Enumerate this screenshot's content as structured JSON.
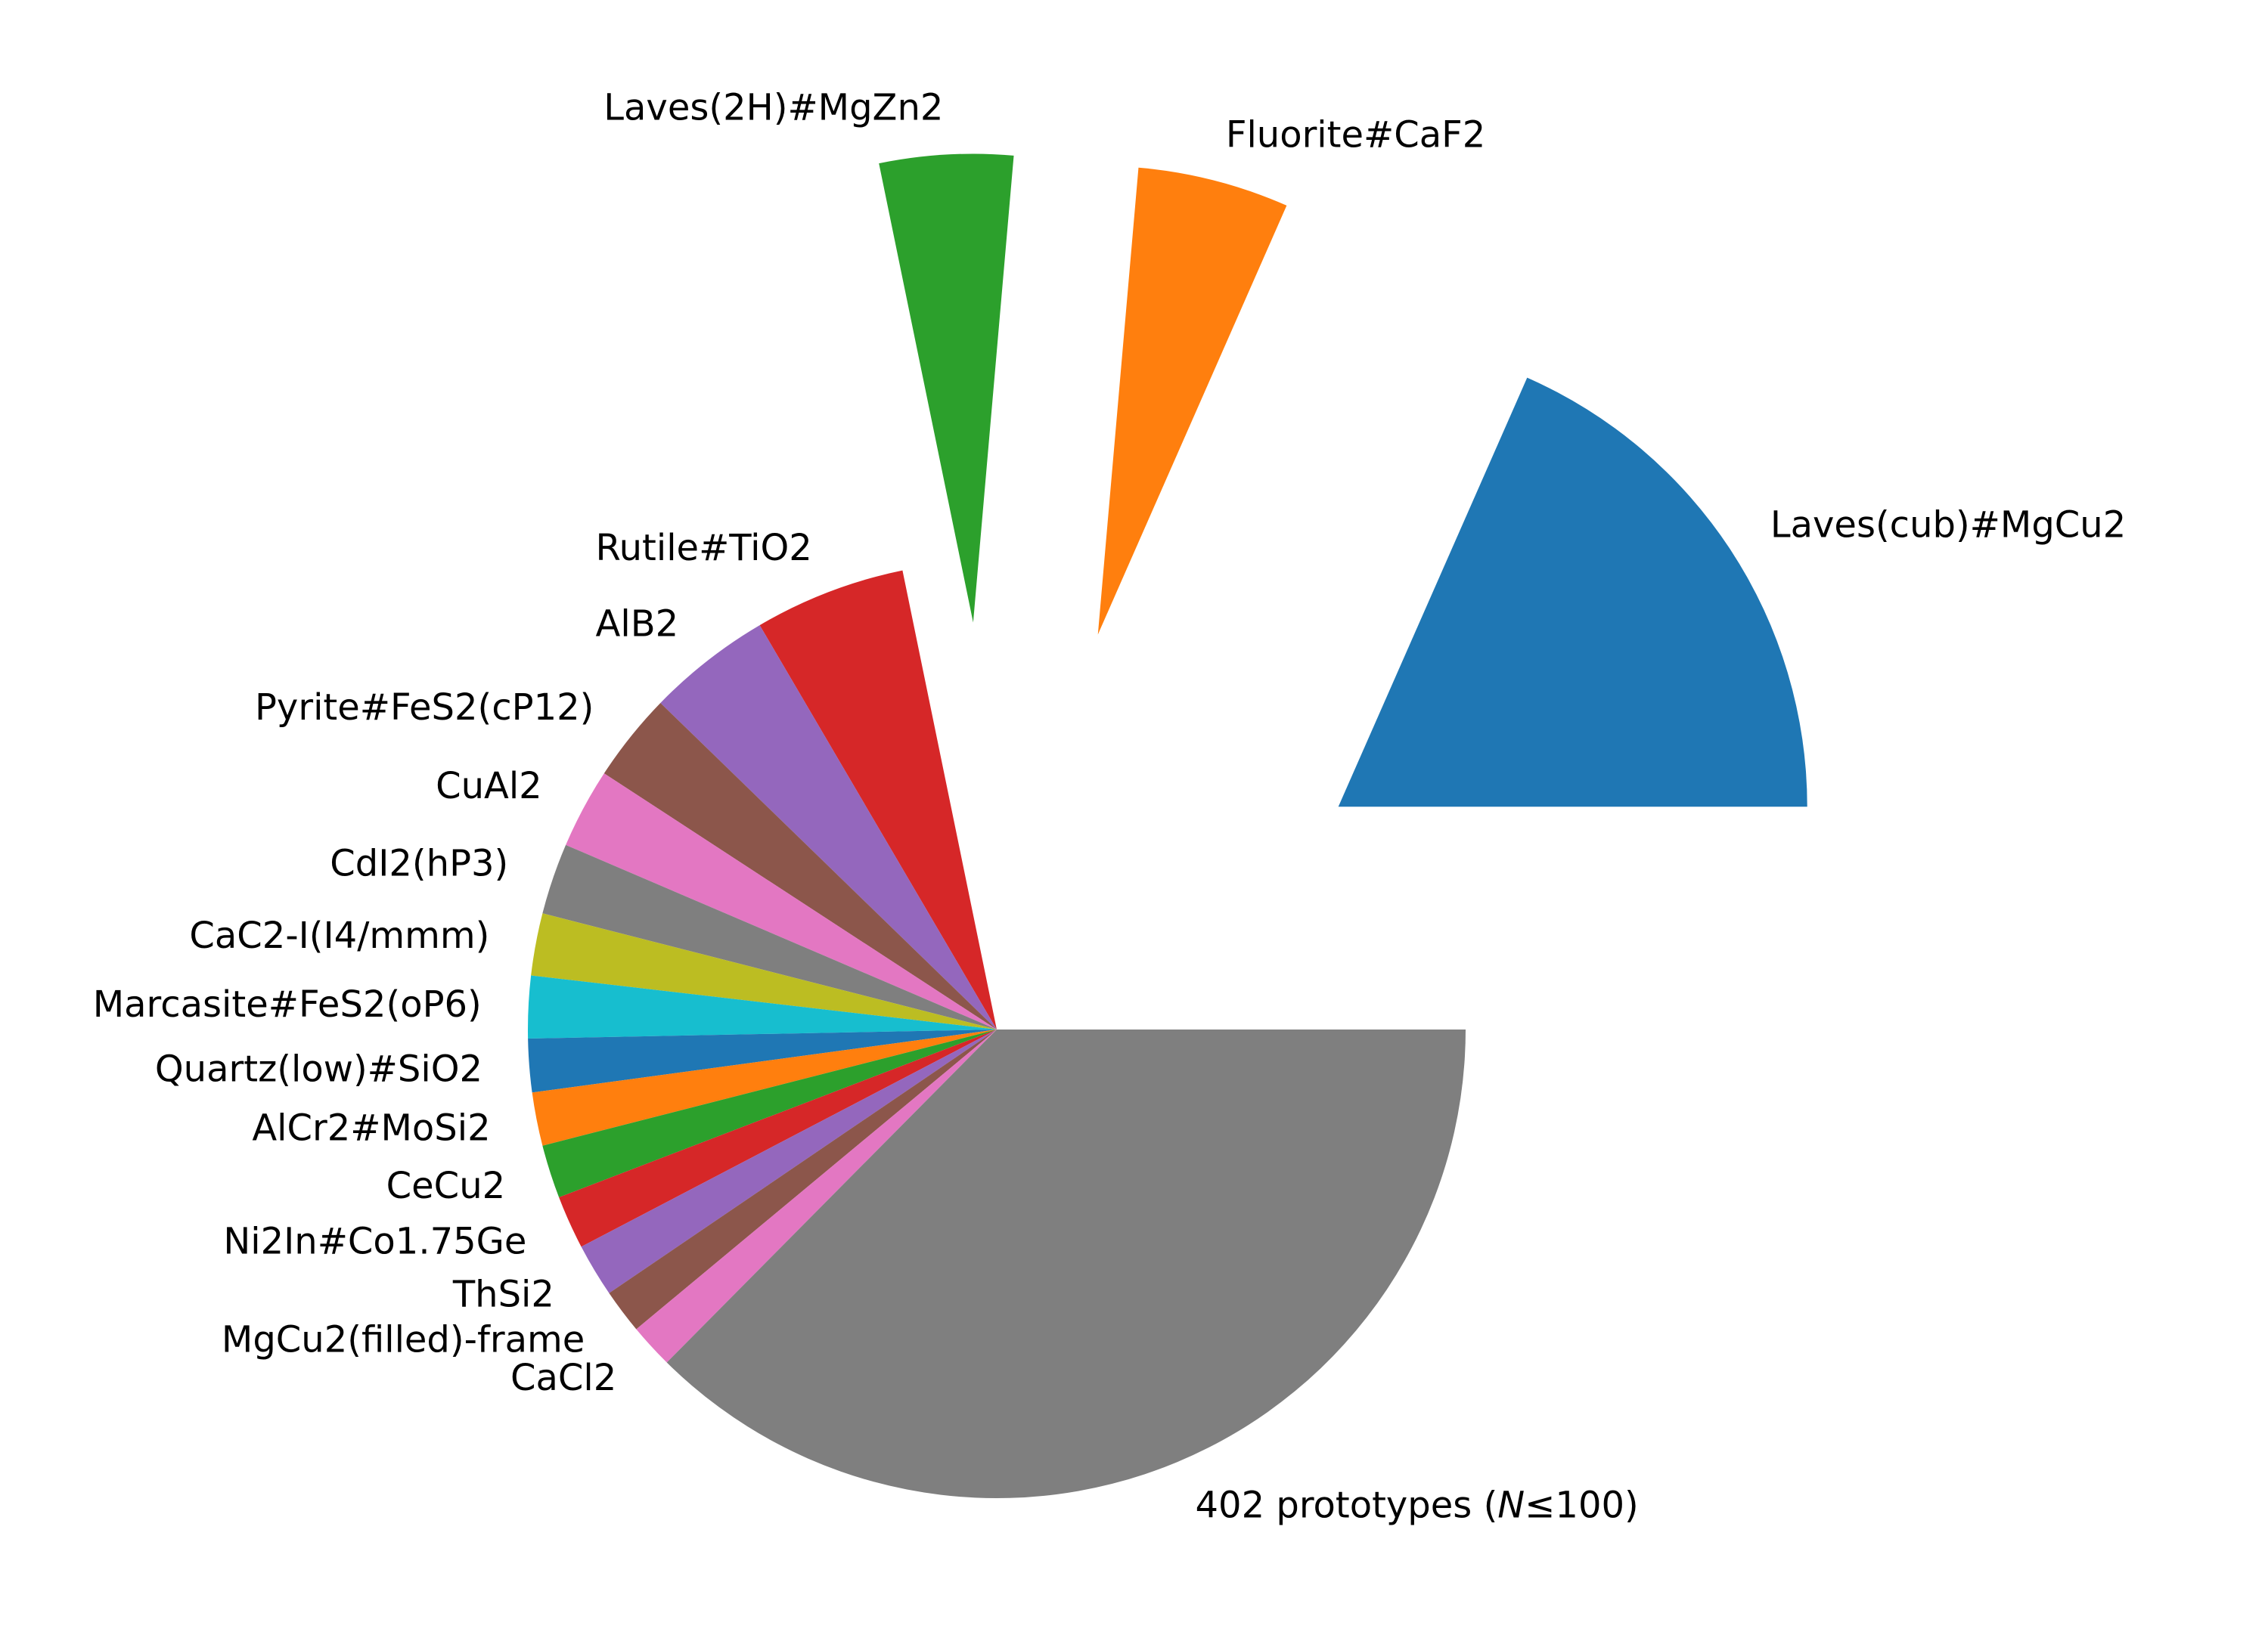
{
  "chart_data": {
    "type": "pie",
    "start_angle_deg": 0,
    "direction": "counterclockwise",
    "slices": [
      {
        "label": "Laves(cub)#MgCu2",
        "value": 60,
        "color": "#1f77b4",
        "exploded": true
      },
      {
        "label": "Fluorite#CaF2",
        "value": 17,
        "color": "#ff7f0e",
        "exploded": true
      },
      {
        "label": "Laves(2H)#MgZn2",
        "value": 15,
        "color": "#2ca02c",
        "exploded": true
      },
      {
        "label": "Rutile#TiO2",
        "value": 17,
        "color": "#d62728",
        "exploded": false
      },
      {
        "label": "AlB2",
        "value": 14,
        "color": "#9467bd",
        "exploded": false
      },
      {
        "label": "Pyrite#FeS2(cP12)",
        "value": 10,
        "color": "#8c564b",
        "exploded": false
      },
      {
        "label": "CuAl2",
        "value": 9,
        "color": "#e377c2",
        "exploded": false
      },
      {
        "label": "CdI2(hP3)",
        "value": 8,
        "color": "#7f7f7f",
        "exploded": false
      },
      {
        "label": "CaC2-I(I4/mmm)",
        "value": 7,
        "color": "#bcbd22",
        "exploded": false
      },
      {
        "label": "Marcasite#FeS2(oP6)",
        "value": 7,
        "color": "#17becf",
        "exploded": false
      },
      {
        "label": "Quartz(low)#SiO2",
        "value": 6,
        "color": "#1f77b4",
        "exploded": false
      },
      {
        "label": "AlCr2#MoSi2",
        "value": 6,
        "color": "#ff7f0e",
        "exploded": false
      },
      {
        "label": "CeCu2",
        "value": 6,
        "color": "#2ca02c",
        "exploded": false
      },
      {
        "label": "Ni2In#Co1.75Ge",
        "value": 6,
        "color": "#d62728",
        "exploded": false
      },
      {
        "label": "ThSi2",
        "value": 6,
        "color": "#9467bd",
        "exploded": false
      },
      {
        "label": "MgCu2(filled)-frame",
        "value": 5,
        "color": "#8c564b",
        "exploded": false
      },
      {
        "label": "CaCl2",
        "value": 5,
        "color": "#e377c2",
        "exploded": false
      },
      {
        "label": "402 prototypes (N≤100)",
        "value": 122,
        "color": "#7f7f7f",
        "exploded": false
      }
    ]
  }
}
